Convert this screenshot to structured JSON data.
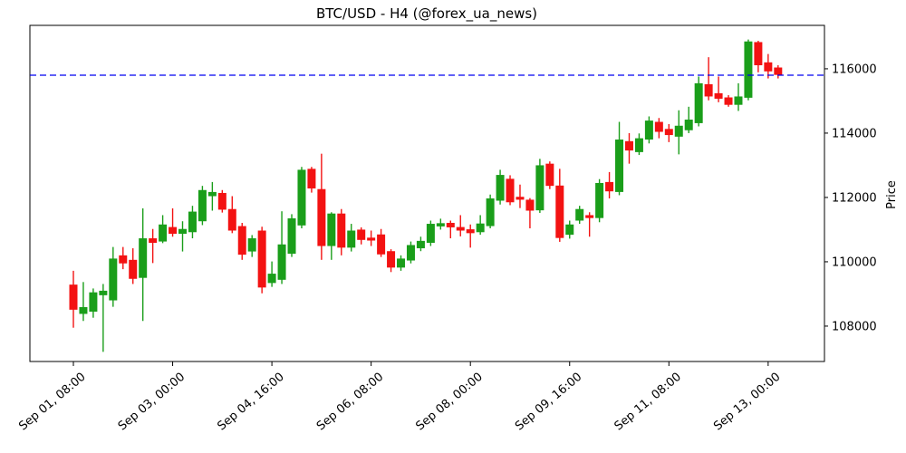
{
  "title": "BTC/USD - H4 (@forex_ua_news)",
  "colors": {
    "up": "#1a9e1a",
    "down": "#f31212",
    "hline": "#0000f0",
    "axis": "#000000",
    "background": "#ffffff"
  },
  "chart_data": {
    "type": "candlestick",
    "title": "BTC/USD - H4 (@forex_ua_news)",
    "symbol": "BTC/USD",
    "timeframe": "H4",
    "source_handle": "@forex_ua_news",
    "ylabel": "Price",
    "ylim": [
      106900,
      117350
    ],
    "y_ticks": [
      108000,
      110000,
      112000,
      114000,
      116000
    ],
    "x_tick_labels": [
      "Sep 01, 08:00",
      "Sep 03, 00:00",
      "Sep 04, 16:00",
      "Sep 06, 08:00",
      "Sep 08, 00:00",
      "Sep 09, 16:00",
      "Sep 11, 08:00",
      "Sep 13, 00:00"
    ],
    "x_tick_candle_indices": [
      0,
      10,
      20,
      30,
      40,
      50,
      60,
      70
    ],
    "grid": false,
    "legend": null,
    "hline": {
      "value": 115800,
      "style": "dashed",
      "color": "#0000f0"
    },
    "columns": [
      "open",
      "high",
      "low",
      "close"
    ],
    "candles": [
      [
        109290,
        109720,
        107950,
        108510
      ],
      [
        108380,
        109370,
        108160,
        108590
      ],
      [
        108450,
        109170,
        108260,
        109050
      ],
      [
        108960,
        109310,
        107200,
        109100
      ],
      [
        108800,
        110460,
        108600,
        110100
      ],
      [
        110200,
        110460,
        109770,
        109950
      ],
      [
        110060,
        110420,
        109310,
        109470
      ],
      [
        109500,
        111660,
        108160,
        110730
      ],
      [
        110730,
        111020,
        109960,
        110590
      ],
      [
        110630,
        111450,
        110580,
        111160
      ],
      [
        111080,
        111660,
        110780,
        110870
      ],
      [
        110870,
        111260,
        110320,
        111020
      ],
      [
        110920,
        111740,
        110730,
        111560
      ],
      [
        111260,
        112360,
        111140,
        112230
      ],
      [
        112040,
        112480,
        111590,
        112170
      ],
      [
        112140,
        112230,
        111530,
        111620
      ],
      [
        111640,
        112040,
        110890,
        110970
      ],
      [
        111110,
        111210,
        110060,
        110220
      ],
      [
        110320,
        110830,
        110150,
        110730
      ],
      [
        110970,
        111090,
        109020,
        109200
      ],
      [
        109340,
        110010,
        109220,
        109630
      ],
      [
        109440,
        111570,
        109310,
        110540
      ],
      [
        110250,
        111480,
        110150,
        111350
      ],
      [
        111130,
        112950,
        111040,
        112860
      ],
      [
        112890,
        112950,
        112150,
        112280
      ],
      [
        112260,
        113360,
        110060,
        110490
      ],
      [
        110490,
        111540,
        110060,
        111500
      ],
      [
        111500,
        111640,
        110200,
        110440
      ],
      [
        110440,
        111180,
        110320,
        110970
      ],
      [
        111000,
        111070,
        110540,
        110680
      ],
      [
        110750,
        110970,
        110490,
        110660
      ],
      [
        110850,
        111020,
        110150,
        110230
      ],
      [
        110330,
        110390,
        109680,
        109820
      ],
      [
        109820,
        110200,
        109720,
        110100
      ],
      [
        110040,
        110630,
        109950,
        110520
      ],
      [
        110420,
        110780,
        110330,
        110650
      ],
      [
        110590,
        111280,
        110490,
        111180
      ],
      [
        111100,
        111340,
        111000,
        111200
      ],
      [
        111210,
        111280,
        110730,
        111070
      ],
      [
        111080,
        111450,
        110790,
        110970
      ],
      [
        111010,
        111160,
        110440,
        110890
      ],
      [
        110920,
        111450,
        110840,
        111190
      ],
      [
        111110,
        112090,
        111040,
        111970
      ],
      [
        111900,
        112860,
        111780,
        112700
      ],
      [
        112580,
        112690,
        111760,
        111850
      ],
      [
        112020,
        112400,
        111670,
        111930
      ],
      [
        111930,
        111980,
        111040,
        111590
      ],
      [
        111600,
        113200,
        111520,
        113000
      ],
      [
        113050,
        113120,
        112260,
        112360
      ],
      [
        112370,
        112890,
        110620,
        110740
      ],
      [
        110840,
        111280,
        110720,
        111160
      ],
      [
        111280,
        111740,
        111180,
        111640
      ],
      [
        111450,
        111540,
        110780,
        111360
      ],
      [
        111360,
        112570,
        111230,
        112450
      ],
      [
        112480,
        112790,
        111970,
        112190
      ],
      [
        112170,
        114350,
        112070,
        113800
      ],
      [
        113750,
        114000,
        113050,
        113460
      ],
      [
        113410,
        113990,
        113320,
        113840
      ],
      [
        113800,
        114520,
        113680,
        114390
      ],
      [
        114350,
        114470,
        113840,
        114040
      ],
      [
        114130,
        114280,
        113720,
        113940
      ],
      [
        113890,
        114710,
        113340,
        114230
      ],
      [
        114090,
        114820,
        114000,
        114420
      ],
      [
        114310,
        115760,
        114210,
        115550
      ],
      [
        115520,
        116360,
        115020,
        115140
      ],
      [
        115240,
        115760,
        114960,
        115070
      ],
      [
        115110,
        115180,
        114820,
        114880
      ],
      [
        114880,
        115550,
        114690,
        115140
      ],
      [
        115100,
        116910,
        115020,
        116850
      ],
      [
        116830,
        116870,
        115890,
        116110
      ],
      [
        116200,
        116460,
        115700,
        115920
      ],
      [
        116040,
        116110,
        115700,
        115810
      ]
    ]
  }
}
